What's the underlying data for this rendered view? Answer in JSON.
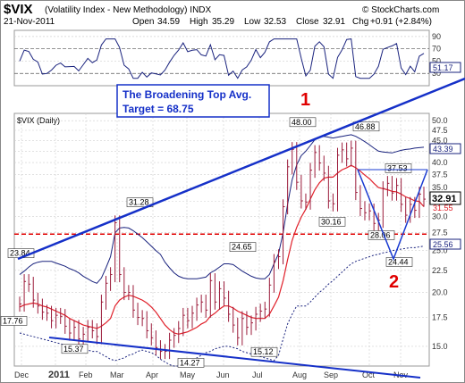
{
  "header": {
    "symbol": "$VIX",
    "name": "(Volatility Index - New Methodology) INDX",
    "date": "21-Nov-2011",
    "open_label": "Open",
    "open": "34.59",
    "high_label": "High",
    "high": "35.29",
    "low_label": "Low",
    "low": "32.53",
    "close_label": "Close",
    "close": "32.91",
    "chg_label": "Chg",
    "chg": "+0.91 (+2.84%)",
    "watermark": "© StockCharts.com"
  },
  "rsi_panel": {
    "ticks": [
      "90",
      "70",
      "50",
      "30"
    ],
    "last_value": "51.17"
  },
  "main_panel": {
    "label": "$VIX (Daily)",
    "y_ticks": [
      "50.0",
      "47.5",
      "45.0",
      "42.5",
      "40.0",
      "37.5",
      "35.0",
      "32.5",
      "30.0",
      "27.5",
      "25.0",
      "22.5",
      "20.0",
      "17.5",
      "15.0"
    ],
    "right_tags": {
      "upper_band": "43.39",
      "close": "32.91",
      "ma": "31.55",
      "lower_band": "25.56"
    }
  },
  "callout": {
    "line1": "The Broadening Top Avg.",
    "line2": "Target = 68.75"
  },
  "annotations": {
    "wave1": "1",
    "wave2": "2"
  },
  "colors": {
    "price": "#9b1b3a",
    "ma": "#e0202a",
    "bands": "#1a237e",
    "trend": "#1530c8",
    "target_line": "#e00000"
  },
  "chart_data": {
    "type": "line",
    "x_ticks": [
      "Dec",
      "2011",
      "Feb",
      "Mar",
      "Apr",
      "May",
      "Jun",
      "Jul",
      "Aug",
      "Sep",
      "Oct",
      "Nov"
    ],
    "ylim": [
      13.5,
      52
    ],
    "y_scale": "log",
    "price_labels": [
      {
        "text": "23.84",
        "value": 23.84
      },
      {
        "text": "17.76",
        "value": 17.76
      },
      {
        "text": "15.37",
        "value": 15.37
      },
      {
        "text": "31.28",
        "value": 31.28
      },
      {
        "text": "14.27",
        "value": 14.27
      },
      {
        "text": "24.65",
        "value": 24.65
      },
      {
        "text": "15.12",
        "value": 15.12
      },
      {
        "text": "48.00",
        "value": 48.0
      },
      {
        "text": "30.16",
        "value": 30.16
      },
      {
        "text": "46.88",
        "value": 46.88
      },
      {
        "text": "37.53",
        "value": 37.53
      },
      {
        "text": "28.06",
        "value": 28.06
      },
      {
        "text": "24.44",
        "value": 24.44
      }
    ],
    "horizontal_level": 27.3,
    "series": [
      {
        "values": [
          18.8,
          21.2,
          20.9,
          19.2,
          18.6,
          18.0,
          17.9,
          17.2,
          17.7,
          17.6,
          16.7,
          16.1,
          16.6,
          15.6,
          16.0,
          16.6,
          16.3,
          15.8,
          19.0,
          21.0,
          22.0,
          29.0,
          22.0,
          20.0,
          20.0,
          18.2,
          17.5,
          17.4,
          16.3,
          15.7,
          14.9,
          14.6,
          14.6,
          15.5,
          15.9,
          16.5,
          17.7,
          17.2,
          17.9,
          18.7,
          19.0,
          18.2,
          21.3,
          19.0,
          20.4,
          19.4,
          17.8,
          16.8,
          15.7,
          17.4,
          16.6,
          17.0,
          17.8,
          18.1,
          18.3,
          20.8,
          23.6,
          24.2,
          31.6,
          39.1,
          42.9,
          36.0,
          32.6,
          32.4,
          38.4,
          42.2,
          39.9,
          37.8,
          32.6,
          32.1,
          41.6,
          42.8,
          40.8,
          43.2,
          34.1,
          31.3,
          30.6,
          30.9,
          28.9,
          29.4,
          34.8,
          35.8,
          34.0,
          35.4,
          32.0,
          30.2,
          32.0,
          31.0,
          33.8,
          32.9
        ]
      },
      {
        "values": [
          18.5,
          18.7,
          18.8,
          18.9,
          18.8,
          18.6,
          18.5,
          18.3,
          18.1,
          17.9,
          17.7,
          17.4,
          17.2,
          17.0,
          16.8,
          16.7,
          16.6,
          16.5,
          16.7,
          17.0,
          17.4,
          18.6,
          19.2,
          19.5,
          19.7,
          19.6,
          19.4,
          19.2,
          18.9,
          18.5,
          18.0,
          17.4,
          16.8,
          16.4,
          16.1,
          16.0,
          16.1,
          16.2,
          16.4,
          16.6,
          16.9,
          17.1,
          17.6,
          17.9,
          18.3,
          18.6,
          18.6,
          18.4,
          18.1,
          17.9,
          17.7,
          17.5,
          17.4,
          17.4,
          17.4,
          17.8,
          18.6,
          19.5,
          21.3,
          23.8,
          26.4,
          28.3,
          29.9,
          31.2,
          32.9,
          34.6,
          35.9,
          36.8,
          37.0,
          37.0,
          37.8,
          38.5,
          38.9,
          39.4,
          38.9,
          38.2,
          37.4,
          36.7,
          35.8,
          35.0,
          34.8,
          34.6,
          34.3,
          34.2,
          33.8,
          33.3,
          33.0,
          32.6,
          32.5,
          31.6
        ]
      },
      {
        "values": [
          22.0,
          22.4,
          22.9,
          23.3,
          23.5,
          23.6,
          23.6,
          23.6,
          23.4,
          23.2,
          23.0,
          22.7,
          22.5,
          22.2,
          21.8,
          21.5,
          21.2,
          21.0,
          21.6,
          22.8,
          24.2,
          27.5,
          28.2,
          28.3,
          28.2,
          27.8,
          27.3,
          26.8,
          26.2,
          25.6,
          25.0,
          24.5,
          23.5,
          22.8,
          22.2,
          21.8,
          21.6,
          21.5,
          21.5,
          21.5,
          21.6,
          21.7,
          22.2,
          22.5,
          22.9,
          23.3,
          23.3,
          23.2,
          22.8,
          22.4,
          22.1,
          21.8,
          21.6,
          21.5,
          21.5,
          22.0,
          23.3,
          24.6,
          27.5,
          32.0,
          36.5,
          39.5,
          41.5,
          42.5,
          43.8,
          45.2,
          45.8,
          46.0,
          45.8,
          45.6,
          45.8,
          46.0,
          46.2,
          46.4,
          46.0,
          45.4,
          44.7,
          44.0,
          43.2,
          42.5,
          42.3,
          42.2,
          42.1,
          42.4,
          42.7,
          42.9,
          43.0,
          43.2,
          43.3,
          43.4
        ]
      },
      {
        "values": [
          16.1,
          16.0,
          15.9,
          15.8,
          15.7,
          15.6,
          15.5,
          15.4,
          15.3,
          15.2,
          15.1,
          15.0,
          14.9,
          14.8,
          14.7,
          14.7,
          14.6,
          14.6,
          14.4,
          14.2,
          14.0,
          13.9,
          14.0,
          14.1,
          14.3,
          14.4,
          14.6,
          14.7,
          14.6,
          14.5,
          14.3,
          14.0,
          13.8,
          13.6,
          13.5,
          13.5,
          13.6,
          13.7,
          13.9,
          14.1,
          14.3,
          14.5,
          14.6,
          14.8,
          14.9,
          15.0,
          15.0,
          14.9,
          14.8,
          14.6,
          14.5,
          14.4,
          14.3,
          14.2,
          14.1,
          14.0,
          13.9,
          14.3,
          15.6,
          16.9,
          17.8,
          18.6,
          18.6,
          18.6,
          19.0,
          19.5,
          20.0,
          20.4,
          20.9,
          21.3,
          21.8,
          22.3,
          22.8,
          23.3,
          23.6,
          23.8,
          24.0,
          24.2,
          24.4,
          24.5,
          24.7,
          24.8,
          25.0,
          25.1,
          25.2,
          25.3,
          25.4,
          25.4,
          25.5,
          25.6
        ]
      }
    ]
  }
}
